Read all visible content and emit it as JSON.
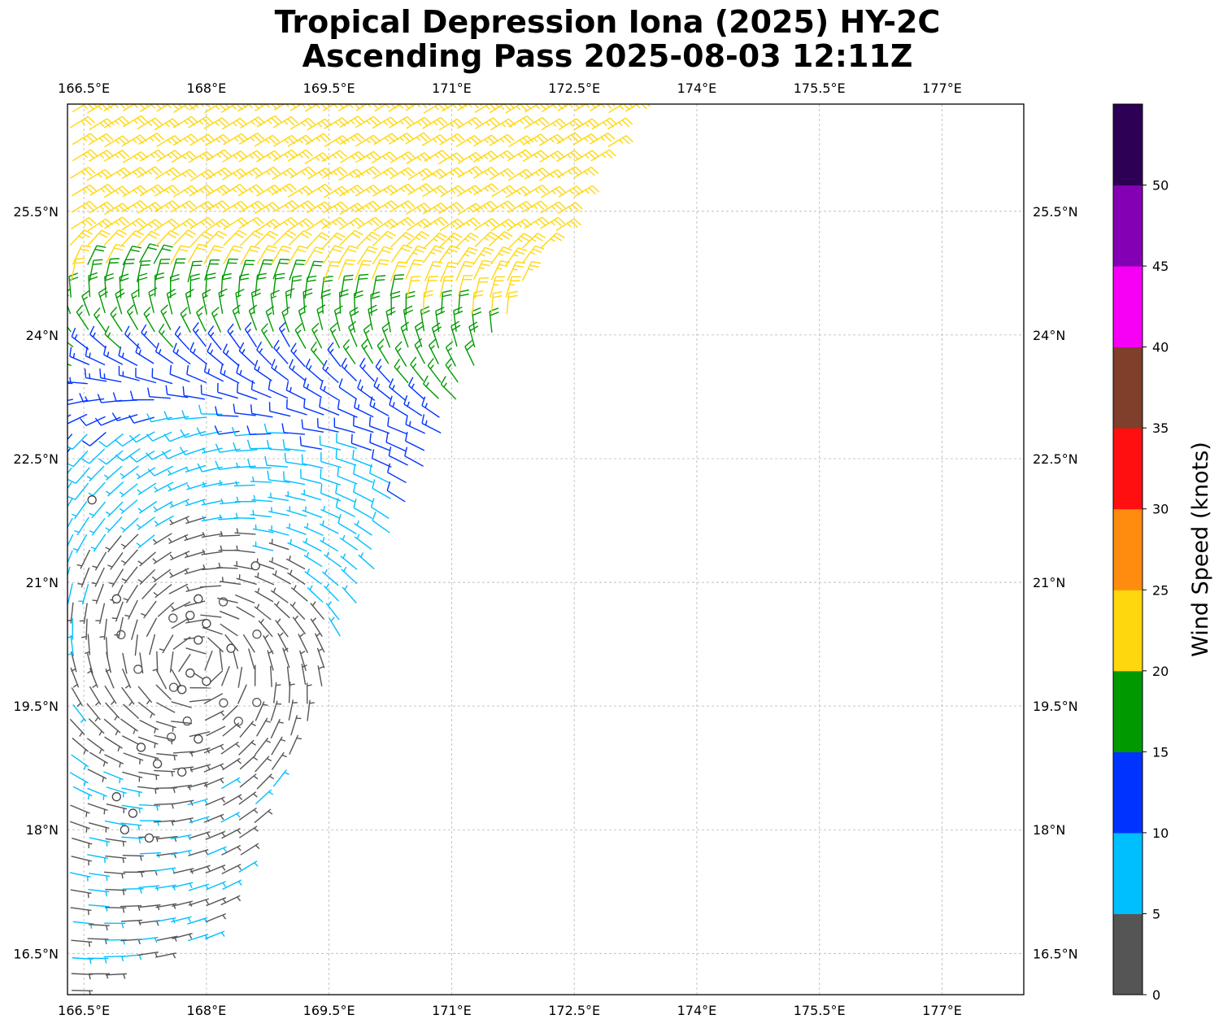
{
  "title_line1": "Tropical Depression Iona (2025) HY-2C",
  "title_line2": "Ascending Pass 2025-08-03 12:11Z",
  "chart_data": {
    "type": "wind-barb-map",
    "title": "Tropical Depression Iona (2025) HY-2C / Ascending Pass 2025-08-03 12:11Z",
    "lon_range": [
      166.3,
      178.0
    ],
    "lat_range": [
      16.0,
      26.8
    ],
    "lon_ticks": [
      "166.5°E",
      "168°E",
      "169.5°E",
      "171°E",
      "172.5°E",
      "174°E",
      "175.5°E",
      "177°E"
    ],
    "lat_ticks": [
      "16.5°N",
      "18°N",
      "19.5°N",
      "21°N",
      "22.5°N",
      "24°N",
      "25.5°N"
    ],
    "lon_values": [
      166.5,
      168,
      169.5,
      171,
      172.5,
      174,
      175.5,
      177
    ],
    "lat_values": [
      16.5,
      18,
      19.5,
      21,
      22.5,
      24,
      25.5
    ],
    "gridlines": true,
    "swath_edge": [
      [
        166.4,
        16.1
      ],
      [
        168.0,
        16.6
      ],
      [
        169.5,
        19.9
      ],
      [
        171.0,
        23.1
      ],
      [
        173.2,
        26.7
      ]
    ],
    "circulation_center": {
      "lon": 167.9,
      "lat": 20.0
    },
    "calm_points": [
      [
        166.6,
        22.0
      ],
      [
        166.9,
        20.8
      ],
      [
        167.9,
        20.8
      ],
      [
        167.8,
        20.6
      ],
      [
        168.0,
        20.5
      ],
      [
        167.9,
        20.3
      ],
      [
        168.3,
        20.2
      ],
      [
        167.8,
        19.9
      ],
      [
        168.0,
        19.8
      ],
      [
        167.7,
        19.7
      ],
      [
        167.9,
        19.1
      ],
      [
        167.2,
        19.0
      ],
      [
        167.4,
        18.8
      ],
      [
        167.7,
        18.7
      ],
      [
        166.9,
        18.4
      ],
      [
        167.1,
        18.2
      ],
      [
        167.0,
        18.0
      ],
      [
        167.3,
        17.9
      ],
      [
        168.6,
        21.2
      ]
    ],
    "colorbar": {
      "label": "Wind Speed (knots)",
      "ticks": [
        0,
        5,
        10,
        15,
        20,
        25,
        30,
        35,
        40,
        45,
        50
      ],
      "bins": [
        {
          "min": 0,
          "max": 5,
          "color": "#555555"
        },
        {
          "min": 5,
          "max": 10,
          "color": "#00bfff"
        },
        {
          "min": 10,
          "max": 15,
          "color": "#0033ff"
        },
        {
          "min": 15,
          "max": 20,
          "color": "#009900"
        },
        {
          "min": 20,
          "max": 25,
          "color": "#ffd70f"
        },
        {
          "min": 25,
          "max": 30,
          "color": "#ff8c0f"
        },
        {
          "min": 30,
          "max": 35,
          "color": "#ff0f0f"
        },
        {
          "min": 35,
          "max": 40,
          "color": "#7f3f2a"
        },
        {
          "min": 40,
          "max": 45,
          "color": "#f500f5"
        },
        {
          "min": 45,
          "max": 50,
          "color": "#8400b4"
        },
        {
          "min": 50,
          "max": 55,
          "color": "#2d0055"
        }
      ]
    }
  }
}
